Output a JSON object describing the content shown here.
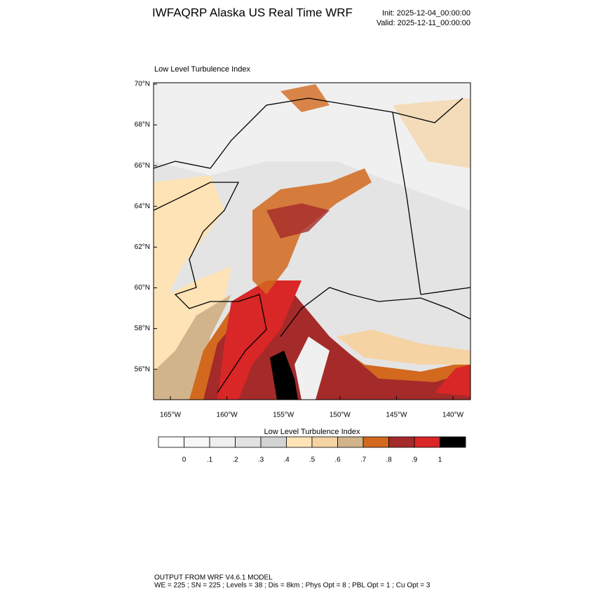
{
  "header": {
    "title": "IWFAQRP Alaska US Real Time WRF",
    "init": "Init: 2025-12-04_00:00:00",
    "valid": "Valid: 2025-12-11_00:00:00"
  },
  "map": {
    "subtitle": "Low Level Turbulence Index",
    "lat_labels": [
      "70°N",
      "68°N",
      "66°N",
      "64°N",
      "62°N",
      "60°N",
      "58°N",
      "56°N"
    ],
    "lon_labels": [
      "165°W",
      "160°W",
      "155°W",
      "150°W",
      "145°W",
      "140°W"
    ]
  },
  "colorbar": {
    "title": "Low Level Turbulence Index",
    "colors": [
      "#ffffff",
      "#f7f7f7",
      "#efefef",
      "#e2e2e2",
      "#d3d3d3",
      "#fde3b5",
      "#f5d3a3",
      "#d2b48c",
      "#d2691e",
      "#a52a2a",
      "#d92626",
      "#000000"
    ],
    "labels": [
      "0",
      ".1",
      ".2",
      ".3",
      ".4",
      ".5",
      ".6",
      ".7",
      ".8",
      ".9",
      "1"
    ]
  },
  "footer": {
    "line1": "OUTPUT FROM WRF V4.6.1 MODEL",
    "line2": "WE = 225 ; SN = 225 ; Levels = 38 ; Dis = 8km ; Phys Opt = 8 ; PBL Opt = 1 ; Cu Opt = 3"
  }
}
